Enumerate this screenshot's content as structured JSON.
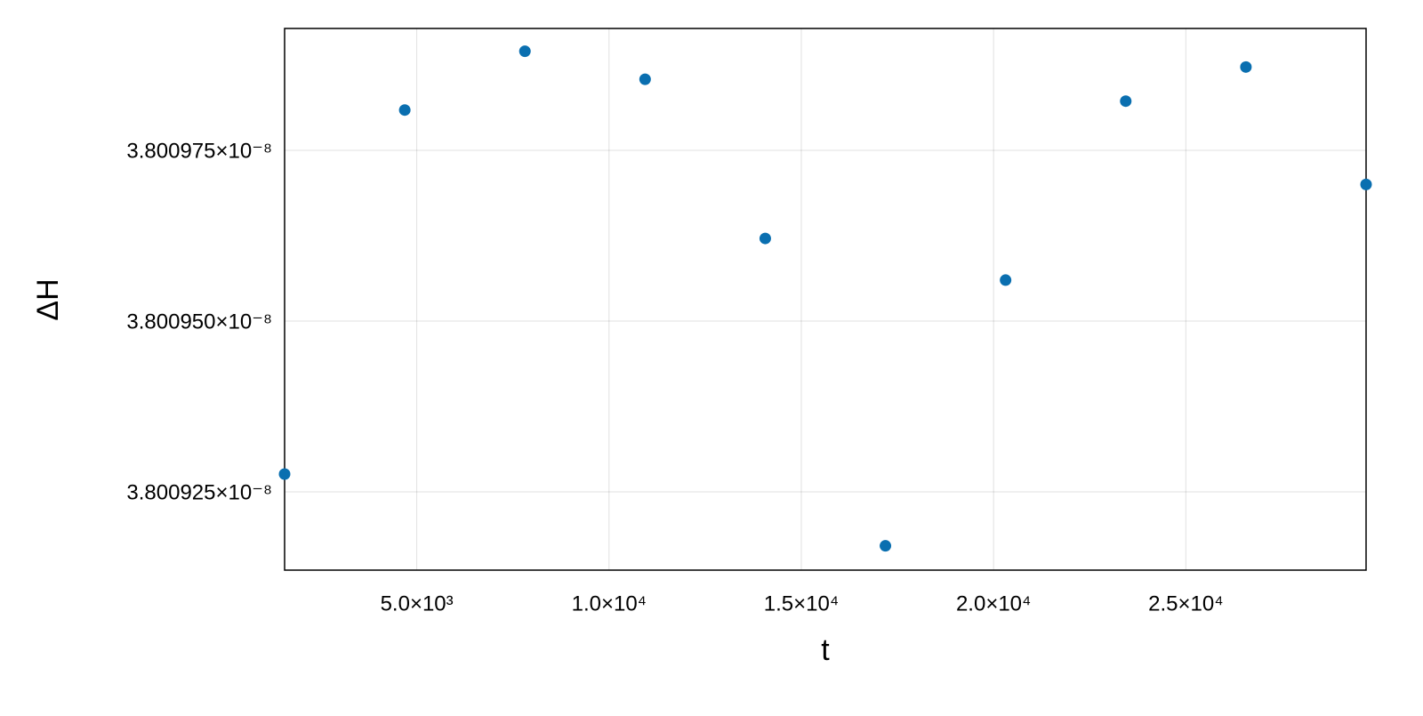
{
  "chart_data": {
    "type": "scatter",
    "xlabel": "t",
    "ylabel": "ΔH",
    "x": [
      1562.5,
      4687.5,
      7812.5,
      10937.5,
      14062.5,
      17187.5,
      20312.5,
      23437.5,
      26562.5,
      29687.5
    ],
    "series": [
      {
        "color": "#0a6fb0",
        "values": [
          3.8009276e-08,
          3.8009809e-08,
          3.8009895e-08,
          3.8009854e-08,
          3.8009621e-08,
          3.8009171e-08,
          3.800956e-08,
          3.8009822e-08,
          3.8009872e-08,
          3.80097e-08
        ]
      }
    ],
    "xlim": [
      1562.5,
      29687.5
    ],
    "ylim": [
      3.80091354e-08,
      3.80099284e-08
    ],
    "xticks": [
      {
        "value": 5000,
        "label": "5.0×10³"
      },
      {
        "value": 10000,
        "label": "1.0×10⁴"
      },
      {
        "value": 15000,
        "label": "1.5×10⁴"
      },
      {
        "value": 20000,
        "label": "2.0×10⁴"
      },
      {
        "value": 25000,
        "label": "2.5×10⁴"
      }
    ],
    "yticks": [
      {
        "value": 3.800925e-08,
        "label": "3.800925×10⁻⁸"
      },
      {
        "value": 3.80095e-08,
        "label": "3.800950×10⁻⁸"
      },
      {
        "value": 3.800975e-08,
        "label": "3.800975×10⁻⁸"
      }
    ],
    "grid": true
  }
}
